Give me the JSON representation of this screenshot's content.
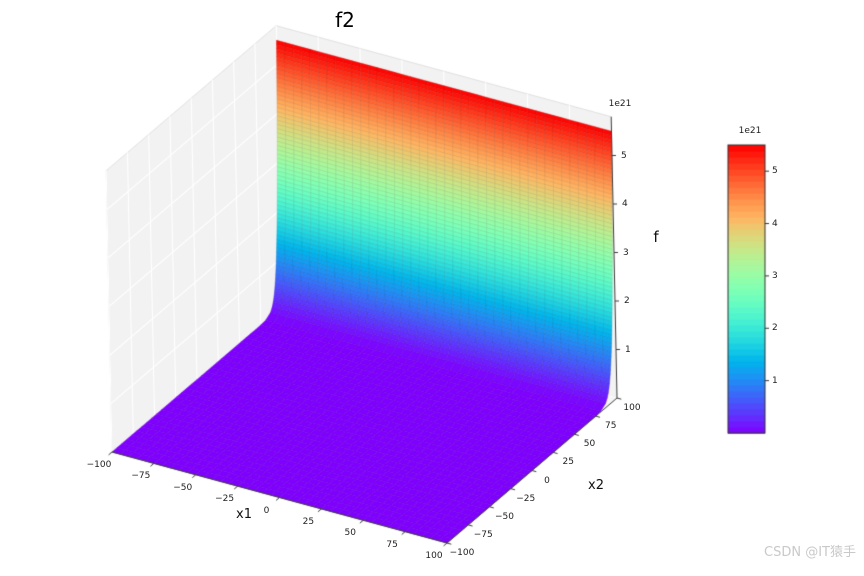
{
  "chart_data": {
    "type": "surface",
    "title": "f2",
    "xlabel": "x1",
    "ylabel": "x2",
    "zlabel": "f",
    "x1_range": [
      -100,
      100
    ],
    "x2_range": [
      -100,
      100
    ],
    "z_range": [
      0,
      5.8e+21
    ],
    "x1_ticks": {
      "values": [
        -100,
        -75,
        -50,
        -25,
        0,
        25,
        50,
        75,
        100
      ],
      "labels": [
        "−100",
        "−75",
        "−50",
        "−25",
        "0",
        "25",
        "50",
        "75",
        "100"
      ]
    },
    "x2_ticks": {
      "values": [
        -100,
        -75,
        -50,
        -25,
        0,
        25,
        50,
        75,
        100
      ],
      "labels": [
        "−100",
        "−75",
        "−50",
        "−25",
        "0",
        "25",
        "50",
        "75",
        "100"
      ]
    },
    "z_ticks": {
      "values": [
        1,
        2,
        3,
        4,
        5
      ],
      "labels": [
        "1",
        "2",
        "3",
        "4",
        "5"
      ]
    },
    "z_offset_text": "1e21",
    "surface": {
      "description": "Surface is approximately 0 (flat purple floor) over almost the entire x1-x2 domain and rises as a near-vertical cliff to about 5.5e21 as x2 approaches +100; height is uniform along x1.",
      "z_max": 5.5e+21,
      "cliff_axis": "x2",
      "cliff_edge": 100,
      "exponent": 60
    },
    "colormap": {
      "name": "rainbow",
      "low_color": "#8000ff",
      "high_color": "#ff0000"
    },
    "colorbar": {
      "vmin": 0,
      "vmax": 5.5e+21,
      "ticks": {
        "values": [
          1,
          2,
          3,
          4,
          5
        ],
        "labels": [
          "1",
          "2",
          "3",
          "4",
          "5"
        ]
      },
      "offset_text": "1e21"
    },
    "grid": true,
    "legend": "none"
  },
  "watermark": "CSDN @IT猿手"
}
